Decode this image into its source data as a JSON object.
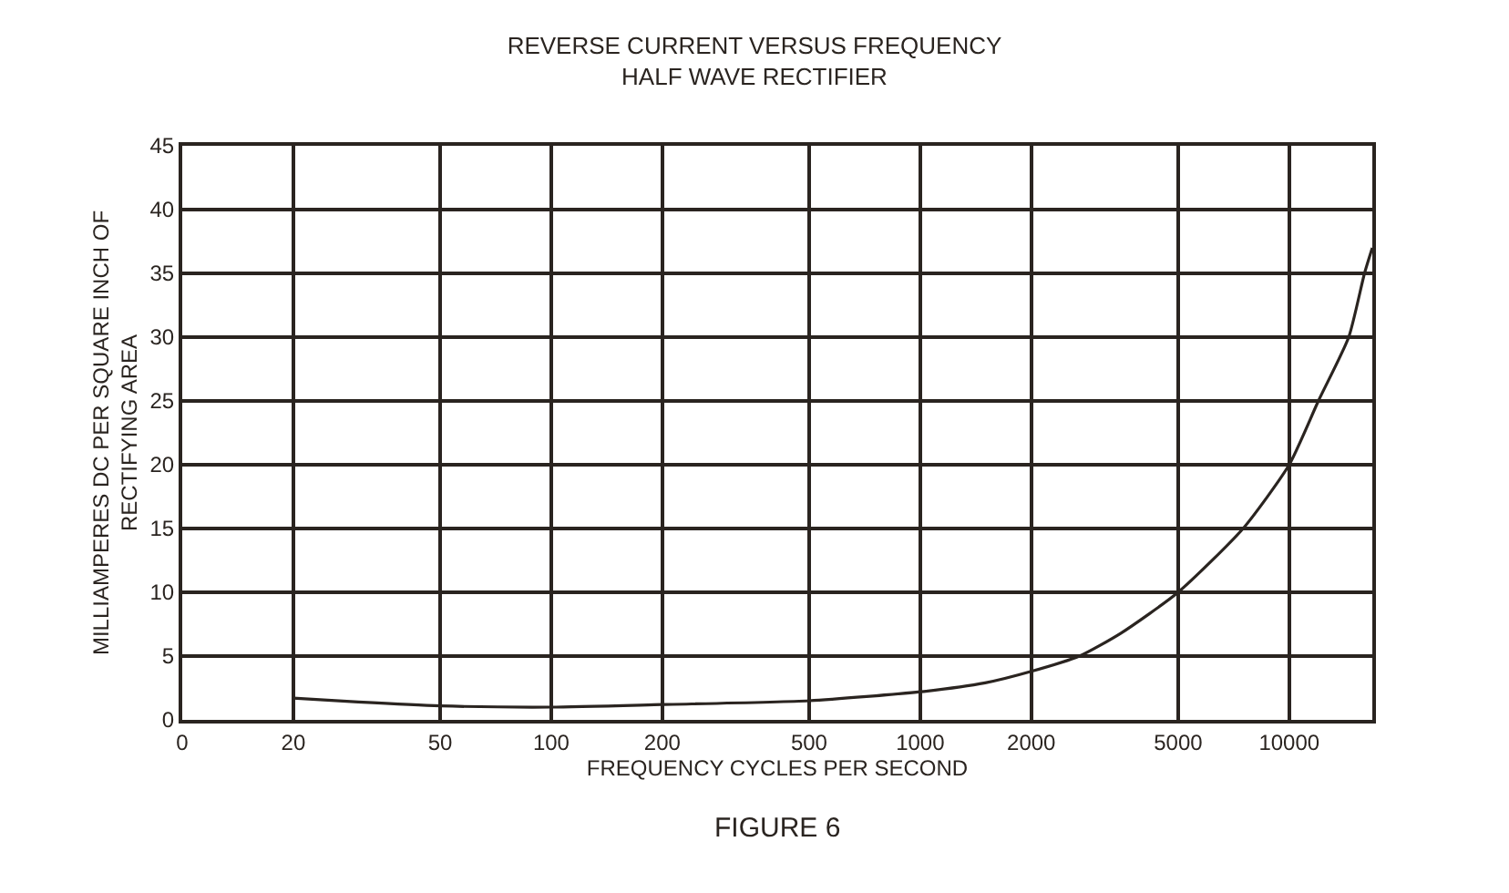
{
  "chart_data": {
    "type": "line",
    "title": "REVERSE CURRENT VERSUS FREQUENCY\nHALF WAVE RECTIFIER",
    "xlabel": "FREQUENCY CYCLES PER SECOND",
    "ylabel": "MILLIAMPERES DC PER SQUARE INCH OF\nRECTIFYING AREA",
    "annotations": [
      "FIGURE 6"
    ],
    "log": "x",
    "series": [
      {
        "color": "#2a2420",
        "x": [
          20,
          30,
          50,
          100,
          200,
          500,
          1000,
          1500,
          2000,
          2700,
          3500,
          5000,
          7500,
          10000,
          12000,
          14500,
          16000,
          16800
        ],
        "values": [
          1.7,
          1.4,
          1.1,
          1.0,
          1.2,
          1.5,
          2.2,
          2.9,
          3.8,
          5,
          6.8,
          10,
          15,
          20,
          25,
          30,
          35,
          37
        ]
      }
    ],
    "xlim": [
      0,
      16800
    ],
    "xticks": [
      0,
      20,
      50,
      100,
      200,
      500,
      1000,
      2000,
      5000,
      10000
    ],
    "ylim": [
      0,
      45
    ],
    "yticks": [
      0,
      5,
      10,
      15,
      20,
      25,
      30,
      35,
      40,
      45
    ],
    "grid": true,
    "marker": "none",
    "line_style": "solid"
  }
}
